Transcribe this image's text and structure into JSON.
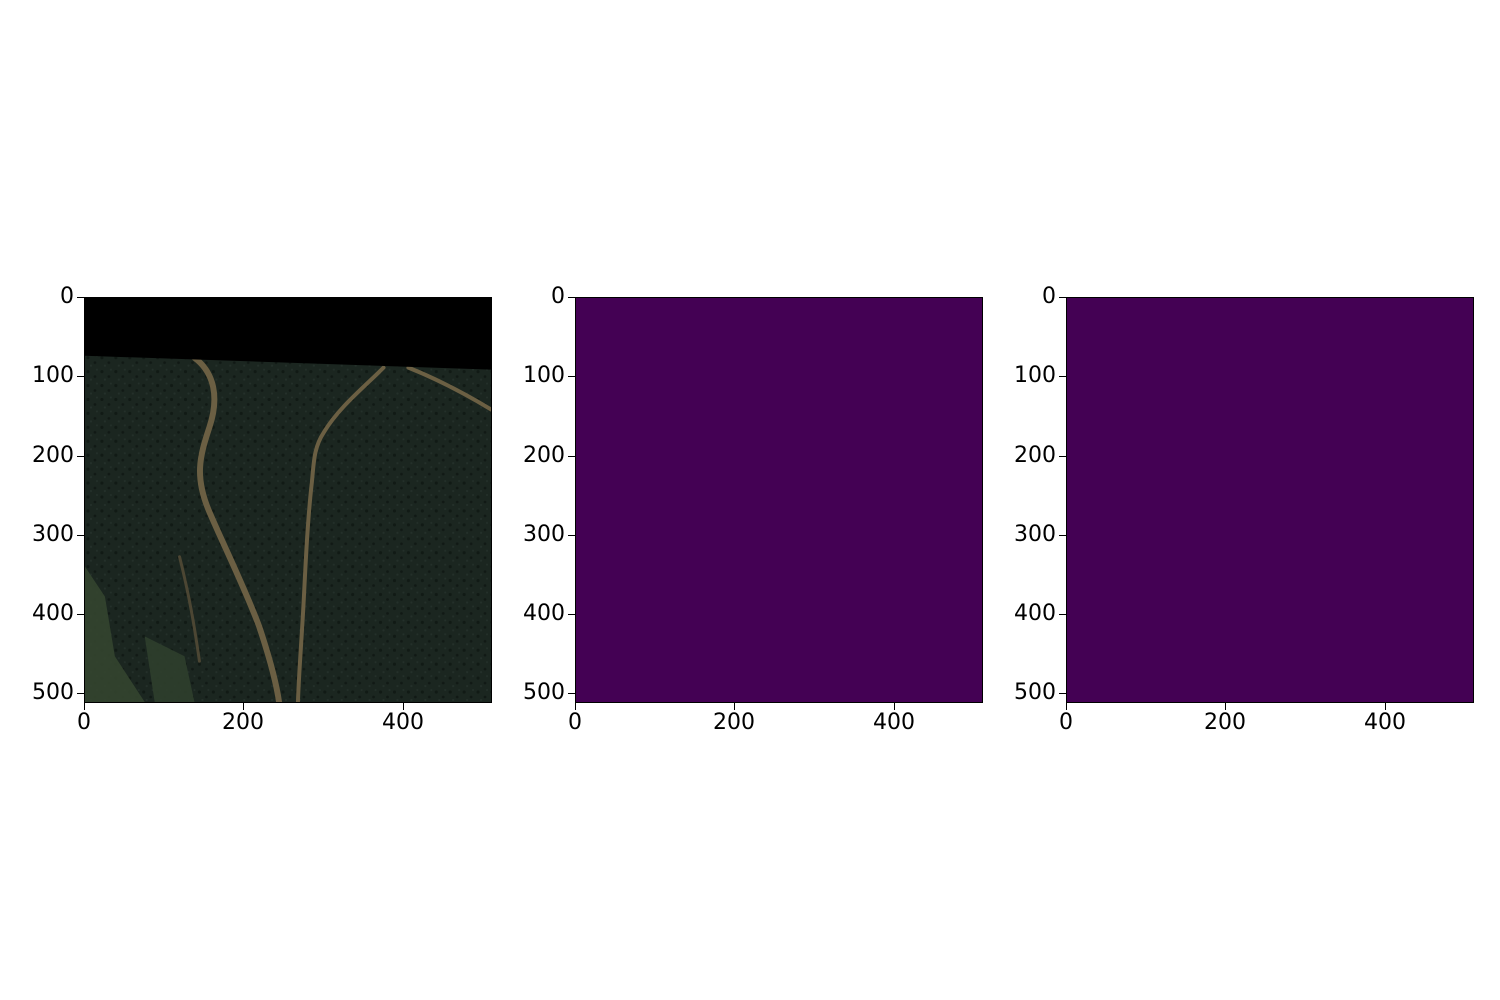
{
  "figure": {
    "panels": [
      {
        "name": "satellite-image",
        "kind": "rgb-image",
        "description_color": "#1d2a24",
        "yticks": [
          "0",
          "100",
          "200",
          "300",
          "400",
          "500"
        ],
        "xticks": [
          "0",
          "200",
          "400"
        ],
        "ytick_values": [
          0,
          100,
          200,
          300,
          400,
          500
        ],
        "xtick_values": [
          0,
          200,
          400
        ],
        "extent": [
          0,
          512
        ]
      },
      {
        "name": "mask-prediction",
        "kind": "colormap-image",
        "fill_color": "#440154",
        "yticks": [
          "0",
          "100",
          "200",
          "300",
          "400",
          "500"
        ],
        "xticks": [
          "0",
          "200",
          "400"
        ],
        "ytick_values": [
          0,
          100,
          200,
          300,
          400,
          500
        ],
        "xtick_values": [
          0,
          200,
          400
        ],
        "extent": [
          0,
          512
        ]
      },
      {
        "name": "mask-ground-truth",
        "kind": "colormap-image",
        "fill_color": "#440154",
        "yticks": [
          "0",
          "100",
          "200",
          "300",
          "400",
          "500"
        ],
        "xticks": [
          "0",
          "200",
          "400"
        ],
        "ytick_values": [
          0,
          100,
          200,
          300,
          400,
          500
        ],
        "xtick_values": [
          0,
          200,
          400
        ],
        "extent": [
          0,
          512
        ]
      }
    ],
    "colors": {
      "nodata_band": "#000000",
      "vegetation": "#1b2620",
      "vegetation_light": "#2a3a2c",
      "channel": "#6e6245",
      "field": "#3a4a35"
    }
  }
}
